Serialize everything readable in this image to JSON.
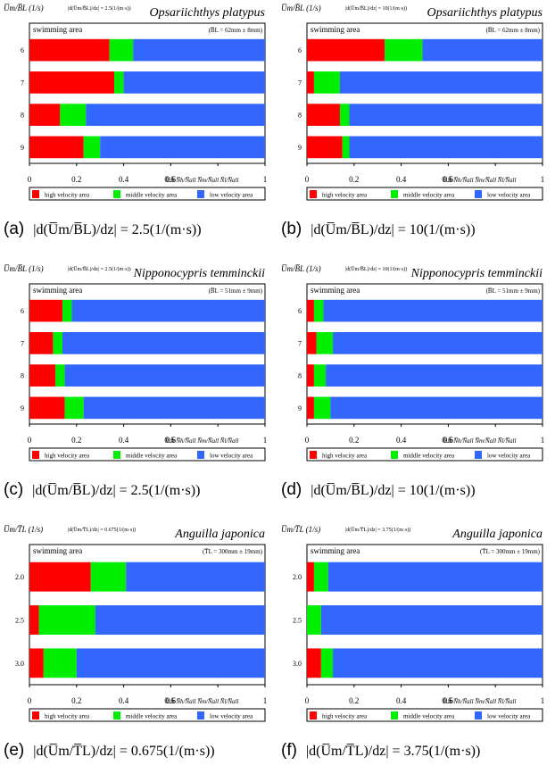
{
  "legend": [
    {
      "label": "high velocity area",
      "color": "#ff0000"
    },
    {
      "label": "middle velocity area",
      "color": "#00ee00"
    },
    {
      "label": "low velocity area",
      "color": "#3366ff"
    }
  ],
  "chart_data": [
    {
      "type": "bar",
      "stacked": true,
      "orientation": "horizontal",
      "panel": "(a)",
      "title": "Opsariichthys platypus",
      "ylabel": "U̅m/B̅L (1/s)",
      "subtitle": "swimming area",
      "gradient_note": "|d(U̅m/B̅L)/dz| = 2.5(1/(m·s))",
      "size_note": "(B̅L = 62mm ± 8mm)",
      "xlabel": "N̅h/N̅all  N̅m/N̅all  N̅l/N̅all",
      "xlim": [
        0,
        1
      ],
      "xticks": [
        "0",
        "0.2",
        "0.4",
        "0.6",
        "0.8",
        "1"
      ],
      "categories": [
        "6",
        "7",
        "8",
        "9"
      ],
      "series": [
        {
          "name": "high velocity area",
          "values": [
            0.34,
            0.36,
            0.13,
            0.23
          ]
        },
        {
          "name": "middle velocity area",
          "values": [
            0.1,
            0.04,
            0.11,
            0.07
          ]
        },
        {
          "name": "low velocity area",
          "values": [
            0.56,
            0.6,
            0.76,
            0.7
          ]
        }
      ],
      "caption": {
        "label": "(a)",
        "formula": "|d(U̅m/B̅L)/dz| = 2.5(1/(m·s))"
      }
    },
    {
      "type": "bar",
      "stacked": true,
      "orientation": "horizontal",
      "panel": "(b)",
      "title": "Opsariichthys platypus",
      "ylabel": "U̅m/B̅L (1/s)",
      "subtitle": "swimming area",
      "gradient_note": "|d(U̅m/B̅L)/dz| = 10(1/(m·s))",
      "size_note": "(B̅L = 62mm ± 8mm)",
      "xlabel": "N̅h/N̅all  N̅m/N̅all  N̅l/N̅all",
      "xlim": [
        0,
        1
      ],
      "xticks": [
        "0",
        "0.2",
        "0.4",
        "0.6",
        "0.8",
        "1"
      ],
      "categories": [
        "6",
        "7",
        "8",
        "9"
      ],
      "series": [
        {
          "name": "high velocity area",
          "values": [
            0.33,
            0.03,
            0.14,
            0.15
          ]
        },
        {
          "name": "middle velocity area",
          "values": [
            0.16,
            0.11,
            0.04,
            0.03
          ]
        },
        {
          "name": "low velocity area",
          "values": [
            0.51,
            0.86,
            0.82,
            0.82
          ]
        }
      ],
      "caption": {
        "label": "(b)",
        "formula": "|d(U̅m/B̅L)/dz| = 10(1/(m·s))"
      }
    },
    {
      "type": "bar",
      "stacked": true,
      "orientation": "horizontal",
      "panel": "(c)",
      "title": "Nipponocypris temminckii",
      "ylabel": "U̅m/B̅L (1/s)",
      "subtitle": "swimming area",
      "gradient_note": "|d(U̅m/B̅L)/dz| = 2.5(1/(m·s))",
      "size_note": "(B̅L = 51mm ± 9mm)",
      "xlabel": "N̅h/N̅all  N̅m/N̅all  N̅l/N̅all",
      "xlim": [
        0,
        1
      ],
      "xticks": [
        "0",
        "0.2",
        "0.4",
        "0.6",
        "0.8",
        "1"
      ],
      "categories": [
        "6",
        "7",
        "8",
        "9"
      ],
      "series": [
        {
          "name": "high velocity area",
          "values": [
            0.14,
            0.1,
            0.11,
            0.15
          ]
        },
        {
          "name": "middle velocity area",
          "values": [
            0.04,
            0.04,
            0.04,
            0.08
          ]
        },
        {
          "name": "low velocity area",
          "values": [
            0.82,
            0.86,
            0.85,
            0.77
          ]
        }
      ],
      "caption": {
        "label": "(c)",
        "formula": "|d(U̅m/B̅L)/dz| = 2.5(1/(m·s))"
      }
    },
    {
      "type": "bar",
      "stacked": true,
      "orientation": "horizontal",
      "panel": "(d)",
      "title": "Nipponocypris temminckii",
      "ylabel": "U̅m/B̅L (1/s)",
      "subtitle": "swimming area",
      "gradient_note": "|d(U̅m/B̅L)/dz| = 10(1/(m·s))",
      "size_note": "(B̅L = 51mm ± 9mm)",
      "xlabel": "N̅h/N̅all  N̅m/N̅all  N̅l/N̅all",
      "xlim": [
        0,
        1
      ],
      "xticks": [
        "0",
        "0.2",
        "0.4",
        "0.6",
        "0.8",
        "1"
      ],
      "categories": [
        "6",
        "7",
        "8",
        "9"
      ],
      "series": [
        {
          "name": "high velocity area",
          "values": [
            0.03,
            0.04,
            0.03,
            0.03
          ]
        },
        {
          "name": "middle velocity area",
          "values": [
            0.04,
            0.07,
            0.05,
            0.07
          ]
        },
        {
          "name": "low velocity area",
          "values": [
            0.93,
            0.89,
            0.92,
            0.9
          ]
        }
      ],
      "caption": {
        "label": "(d)",
        "formula": "|d(U̅m/B̅L)/dz| = 10(1/(m·s))"
      }
    },
    {
      "type": "bar",
      "stacked": true,
      "orientation": "horizontal",
      "panel": "(e)",
      "title": "Anguilla japonica",
      "ylabel": "U̅m/T̅L (1/s)",
      "subtitle": "swimming area",
      "gradient_note": "|d(U̅m/T̅L)/dz| = 0.675(1/(m·s))",
      "size_note": "(T̅L = 300mm ± 19mm)",
      "xlabel": "N̅h/N̅all  N̅m/N̅all  N̅l/N̅all",
      "xlim": [
        0,
        1
      ],
      "xticks": [
        "0",
        "0.2",
        "0.4",
        "0.6",
        "0.8",
        "1"
      ],
      "categories": [
        "2.0",
        "2.5",
        "3.0"
      ],
      "series": [
        {
          "name": "high velocity area",
          "values": [
            0.26,
            0.04,
            0.06
          ]
        },
        {
          "name": "middle velocity area",
          "values": [
            0.15,
            0.24,
            0.14
          ]
        },
        {
          "name": "low velocity area",
          "values": [
            0.59,
            0.72,
            0.8
          ]
        }
      ],
      "caption": {
        "label": "(e)",
        "formula": "|d(U̅m/T̅L)/dz| = 0.675(1/(m·s))"
      }
    },
    {
      "type": "bar",
      "stacked": true,
      "orientation": "horizontal",
      "panel": "(f)",
      "title": "Anguilla japonica",
      "ylabel": "U̅m/T̅L (1/s)",
      "subtitle": "swimming area",
      "gradient_note": "|d(U̅m/T̅L)/dz| = 3.75(1/(m·s))",
      "size_note": "(T̅L = 300mm ± 19mm)",
      "xlabel": "N̅h/N̅all  N̅m/N̅all  N̅l/N̅all",
      "xlim": [
        0,
        1
      ],
      "xticks": [
        "0",
        "0.2",
        "0.4",
        "0.6",
        "0.8",
        "1"
      ],
      "categories": [
        "2.0",
        "2.5",
        "3.0"
      ],
      "series": [
        {
          "name": "high velocity area",
          "values": [
            0.03,
            0.0,
            0.06
          ]
        },
        {
          "name": "middle velocity area",
          "values": [
            0.06,
            0.06,
            0.05
          ]
        },
        {
          "name": "low velocity area",
          "values": [
            0.91,
            0.94,
            0.89
          ]
        }
      ],
      "caption": {
        "label": "(f)",
        "formula": "|d(U̅m/T̅L)/dz| = 3.75(1/(m·s))"
      }
    }
  ]
}
